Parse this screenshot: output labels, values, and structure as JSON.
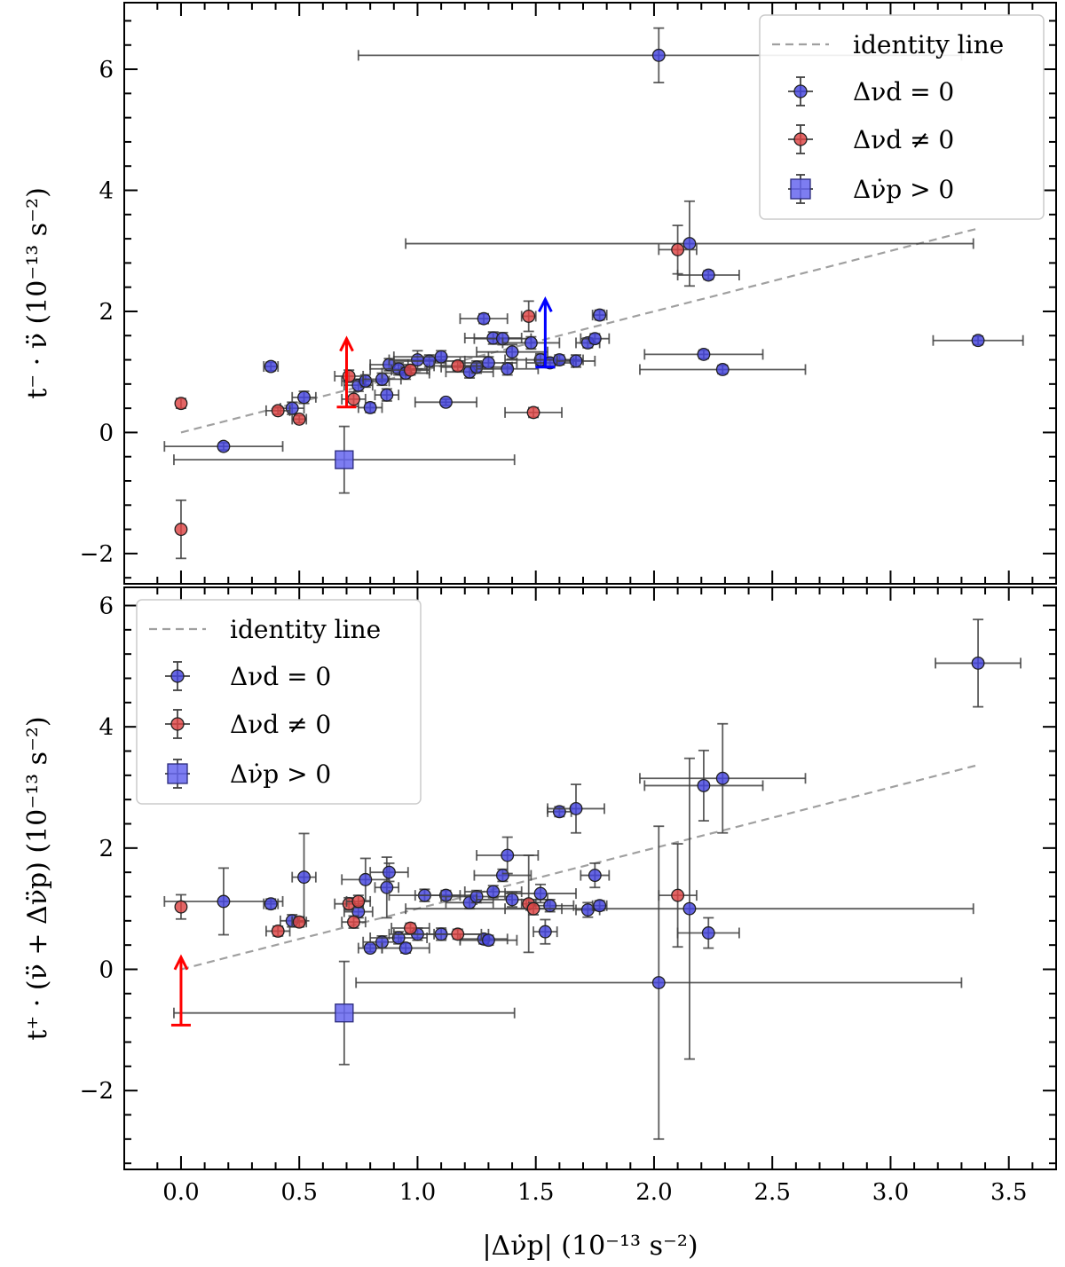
{
  "chart_data": [
    {
      "id": "top",
      "type": "scatter",
      "xlabel": "|Δν̇p| (10^-13 s^-2)",
      "ylabel": "t⁻ · ν̈ (10⁻¹³ s⁻²)",
      "xlim": [
        -0.24,
        3.7
      ],
      "ylim": [
        -2.5,
        7.1
      ],
      "yticks": [
        "−2",
        "0",
        "2",
        "4",
        "6"
      ],
      "ytick_values": [
        -2,
        0,
        2,
        4,
        6
      ],
      "show_x_tick_labels": false,
      "legend": {
        "position": "top-right",
        "entries": [
          "identity line",
          "Δνd = 0",
          "Δνd ≠ 0",
          "Δν̇p > 0"
        ]
      },
      "identity_line": [
        [
          0,
          0
        ],
        [
          3.37,
          3.37
        ]
      ],
      "series": [
        {
          "name": "Δνd = 0",
          "color": "#4444dd",
          "points": [
            {
              "x": 2.02,
              "y": 6.23,
              "xerr": [
                1.27,
                1.28
              ],
              "yerr": 0.45
            },
            {
              "x": 2.15,
              "y": 3.12,
              "xerr": [
                1.2,
                1.2
              ],
              "yerr": 0.7
            },
            {
              "x": 2.23,
              "y": 2.6,
              "xerr": 0.13,
              "yerr": 0.07
            },
            {
              "x": 3.37,
              "y": 1.52,
              "xerr": 0.19,
              "yerr": 0.07
            },
            {
              "x": 2.21,
              "y": 1.29,
              "xerr": 0.25,
              "yerr": 0.07
            },
            {
              "x": 2.29,
              "y": 1.04,
              "xerr": 0.35,
              "yerr": 0.07
            },
            {
              "x": 0.18,
              "y": -0.23,
              "xerr": 0.25,
              "yerr": 0.06
            },
            {
              "x": 0.38,
              "y": 1.09,
              "xerr": 0.03,
              "yerr": 0.07
            },
            {
              "x": 0.47,
              "y": 0.4,
              "xerr": 0.05,
              "yerr": 0.1
            },
            {
              "x": 0.52,
              "y": 0.58,
              "xerr": 0.05,
              "yerr": 0.1
            },
            {
              "x": 0.75,
              "y": 0.78,
              "xerr": 0.06,
              "yerr": 0.1
            },
            {
              "x": 0.78,
              "y": 0.85,
              "xerr": 0.1,
              "yerr": 0.1
            },
            {
              "x": 0.8,
              "y": 0.41,
              "xerr": 0.05,
              "yerr": 0.08
            },
            {
              "x": 0.85,
              "y": 0.88,
              "xerr": 0.08,
              "yerr": 0.1
            },
            {
              "x": 0.87,
              "y": 0.62,
              "xerr": 0.05,
              "yerr": 0.1
            },
            {
              "x": 0.88,
              "y": 1.12,
              "xerr": 0.08,
              "yerr": 0.1
            },
            {
              "x": 0.92,
              "y": 1.05,
              "xerr": 0.12,
              "yerr": 0.1
            },
            {
              "x": 0.95,
              "y": 0.98,
              "xerr": 0.1,
              "yerr": 0.1
            },
            {
              "x": 1.0,
              "y": 1.2,
              "xerr": 0.12,
              "yerr": 0.15
            },
            {
              "x": 1.05,
              "y": 1.18,
              "xerr": 0.15,
              "yerr": 0.1
            },
            {
              "x": 1.1,
              "y": 1.25,
              "xerr": 0.2,
              "yerr": 0.1
            },
            {
              "x": 1.12,
              "y": 0.5,
              "xerr": 0.13,
              "yerr": 0.05
            },
            {
              "x": 1.22,
              "y": 1.0,
              "xerr": 0.1,
              "yerr": 0.1
            },
            {
              "x": 1.25,
              "y": 1.08,
              "xerr": 0.15,
              "yerr": 0.1
            },
            {
              "x": 1.28,
              "y": 1.88,
              "xerr": 0.1,
              "yerr": 0.08
            },
            {
              "x": 1.3,
              "y": 1.15,
              "xerr": 0.12,
              "yerr": 0.1
            },
            {
              "x": 1.32,
              "y": 1.56,
              "xerr": 0.12,
              "yerr": 0.1
            },
            {
              "x": 1.36,
              "y": 1.55,
              "xerr": 0.12,
              "yerr": 0.1
            },
            {
              "x": 1.38,
              "y": 1.05,
              "xerr": 0.13,
              "yerr": 0.1
            },
            {
              "x": 1.4,
              "y": 1.33,
              "xerr": 0.15,
              "yerr": 0.12
            },
            {
              "x": 1.48,
              "y": 1.48,
              "xerr": 0.12,
              "yerr": 0.1
            },
            {
              "x": 1.52,
              "y": 1.2,
              "xerr": 0.15,
              "yerr": 0.1
            },
            {
              "x": 1.56,
              "y": 1.15,
              "xerr": 0.1,
              "yerr": 0.08
            },
            {
              "x": 1.6,
              "y": 1.2,
              "xerr": 0.1,
              "yerr": 0.08
            },
            {
              "x": 1.67,
              "y": 1.18,
              "xerr": 0.08,
              "yerr": 0.1
            },
            {
              "x": 1.72,
              "y": 1.48,
              "xerr": 0.05,
              "yerr": 0.08
            },
            {
              "x": 1.75,
              "y": 1.55,
              "xerr": 0.06,
              "yerr": 0.08
            },
            {
              "x": 1.77,
              "y": 1.94,
              "xerr": 0.03,
              "yerr": 0.08
            }
          ]
        },
        {
          "name": "Δνd ≠ 0",
          "color": "#dd4444",
          "points": [
            {
              "x": 2.1,
              "y": 3.02,
              "xerr": 0.08,
              "yerr": 0.4
            },
            {
              "x": 0.0,
              "y": 0.48,
              "xerr": 0.0,
              "yerr": 0.08
            },
            {
              "x": 0.0,
              "y": -1.6,
              "xerr": 0.0,
              "yerr": 0.48
            },
            {
              "x": 0.41,
              "y": 0.36,
              "xerr": 0.05,
              "yerr": 0.06
            },
            {
              "x": 0.5,
              "y": 0.22,
              "xerr": 0.03,
              "yerr": 0.06
            },
            {
              "x": 0.71,
              "y": 0.93,
              "xerr": 0.06,
              "yerr": 0.1
            },
            {
              "x": 0.73,
              "y": 0.55,
              "xerr": 0.05,
              "yerr": 0.12
            },
            {
              "x": 0.97,
              "y": 1.03,
              "xerr": 0.08,
              "yerr": 0.08
            },
            {
              "x": 1.17,
              "y": 1.1,
              "xerr": 0.1,
              "yerr": 0.08
            },
            {
              "x": 1.47,
              "y": 1.92,
              "xerr": 0.03,
              "yerr": 0.25
            },
            {
              "x": 1.49,
              "y": 0.33,
              "xerr": 0.12,
              "yerr": 0.08
            }
          ]
        },
        {
          "name": "Δν̇p > 0",
          "color": "#6666ee",
          "marker": "square",
          "points": [
            {
              "x": 0.69,
              "y": -0.45,
              "xerr": 0.72,
              "yerr": 0.55
            }
          ]
        }
      ],
      "limit_arrows": [
        {
          "color": "#ff0000",
          "x": 0.7,
          "y_from": 0.42,
          "y_to": 1.55
        },
        {
          "color": "#0000ff",
          "x": 1.54,
          "y_from": 1.08,
          "y_to": 2.2
        }
      ]
    },
    {
      "id": "bottom",
      "type": "scatter",
      "xlabel": "|Δν̇p| (10⁻¹³ s⁻²)",
      "ylabel": "t⁺ · (ν̈ + Δν̈p) (10⁻¹³ s⁻²)",
      "xlim": [
        -0.24,
        3.7
      ],
      "ylim": [
        -3.3,
        6.3
      ],
      "xticks": [
        "0.0",
        "0.5",
        "1.0",
        "1.5",
        "2.0",
        "2.5",
        "3.0",
        "3.5"
      ],
      "xtick_values": [
        0,
        0.5,
        1.0,
        1.5,
        2.0,
        2.5,
        3.0,
        3.5
      ],
      "yticks": [
        "−2",
        "0",
        "2",
        "4",
        "6"
      ],
      "ytick_values": [
        -2,
        0,
        2,
        4,
        6
      ],
      "legend": {
        "position": "top-left",
        "entries": [
          "identity line",
          "Δνd = 0",
          "Δνd ≠ 0",
          "Δν̇p > 0"
        ]
      },
      "identity_line": [
        [
          0,
          0
        ],
        [
          3.37,
          3.37
        ]
      ],
      "series": [
        {
          "name": "Δνd = 0",
          "color": "#4444dd",
          "points": [
            {
              "x": 3.37,
              "y": 5.05,
              "xerr": 0.18,
              "yerr": 0.72
            },
            {
              "x": 2.29,
              "y": 3.15,
              "xerr": 0.35,
              "yerr": 0.9
            },
            {
              "x": 2.21,
              "y": 3.03,
              "xerr": 0.25,
              "yerr": 0.58
            },
            {
              "x": 2.15,
              "y": 1.0,
              "xerr": [
                1.2,
                1.2
              ],
              "yerr": 2.48
            },
            {
              "x": 2.23,
              "y": 0.6,
              "xerr": 0.13,
              "yerr": 0.25
            },
            {
              "x": 2.02,
              "y": -0.22,
              "xerr": [
                1.28,
                1.28
              ],
              "yerr": 2.58
            },
            {
              "x": 0.18,
              "y": 1.12,
              "xerr": 0.25,
              "yerr": 0.55
            },
            {
              "x": 0.38,
              "y": 1.08,
              "xerr": 0.03,
              "yerr": 0.08
            },
            {
              "x": 0.47,
              "y": 0.8,
              "xerr": 0.05,
              "yerr": 0.1
            },
            {
              "x": 0.52,
              "y": 1.52,
              "xerr": 0.05,
              "yerr": 0.72
            },
            {
              "x": 0.75,
              "y": 0.95,
              "xerr": 0.06,
              "yerr": 0.1
            },
            {
              "x": 0.78,
              "y": 1.48,
              "xerr": 0.1,
              "yerr": 0.35
            },
            {
              "x": 0.8,
              "y": 0.35,
              "xerr": 0.05,
              "yerr": 0.06
            },
            {
              "x": 0.85,
              "y": 0.45,
              "xerr": 0.08,
              "yerr": 0.1
            },
            {
              "x": 0.87,
              "y": 1.35,
              "xerr": 0.05,
              "yerr": 0.5
            },
            {
              "x": 0.88,
              "y": 1.6,
              "xerr": 0.08,
              "yerr": 0.15
            },
            {
              "x": 0.92,
              "y": 0.52,
              "xerr": 0.12,
              "yerr": 0.1
            },
            {
              "x": 0.95,
              "y": 0.35,
              "xerr": 0.1,
              "yerr": 0.08
            },
            {
              "x": 1.0,
              "y": 0.58,
              "xerr": 0.12,
              "yerr": 0.1
            },
            {
              "x": 1.03,
              "y": 1.22,
              "xerr": 0.15,
              "yerr": 0.1
            },
            {
              "x": 1.1,
              "y": 0.58,
              "xerr": 0.2,
              "yerr": 0.1
            },
            {
              "x": 1.12,
              "y": 1.22,
              "xerr": 0.13,
              "yerr": 0.08
            },
            {
              "x": 1.22,
              "y": 1.1,
              "xerr": 0.1,
              "yerr": 0.1
            },
            {
              "x": 1.25,
              "y": 1.2,
              "xerr": 0.15,
              "yerr": 0.1
            },
            {
              "x": 1.28,
              "y": 0.5,
              "xerr": 0.1,
              "yerr": 0.08
            },
            {
              "x": 1.3,
              "y": 0.48,
              "xerr": 0.12,
              "yerr": 0.08
            },
            {
              "x": 1.32,
              "y": 1.28,
              "xerr": 0.12,
              "yerr": 0.1
            },
            {
              "x": 1.36,
              "y": 1.55,
              "xerr": 0.12,
              "yerr": 0.1
            },
            {
              "x": 1.38,
              "y": 1.88,
              "xerr": 0.13,
              "yerr": 0.3
            },
            {
              "x": 1.4,
              "y": 1.15,
              "xerr": 0.15,
              "yerr": 0.12
            },
            {
              "x": 1.52,
              "y": 1.25,
              "xerr": 0.15,
              "yerr": 0.15
            },
            {
              "x": 1.54,
              "y": 0.62,
              "xerr": 0.05,
              "yerr": 0.2
            },
            {
              "x": 1.56,
              "y": 1.05,
              "xerr": 0.1,
              "yerr": 0.1
            },
            {
              "x": 1.6,
              "y": 2.6,
              "xerr": 0.05,
              "yerr": 0.08
            },
            {
              "x": 1.67,
              "y": 2.65,
              "xerr": 0.12,
              "yerr": 0.4
            },
            {
              "x": 1.72,
              "y": 0.98,
              "xerr": 0.05,
              "yerr": 0.12
            },
            {
              "x": 1.75,
              "y": 1.55,
              "xerr": 0.06,
              "yerr": 0.2
            },
            {
              "x": 1.77,
              "y": 1.05,
              "xerr": 0.03,
              "yerr": 0.08
            }
          ]
        },
        {
          "name": "Δνd ≠ 0",
          "color": "#dd4444",
          "points": [
            {
              "x": 2.1,
              "y": 1.22,
              "xerr": 0.08,
              "yerr": 0.85
            },
            {
              "x": 0.0,
              "y": 1.03,
              "xerr": 0.0,
              "yerr": 0.2
            },
            {
              "x": 0.41,
              "y": 0.63,
              "xerr": 0.05,
              "yerr": 0.08
            },
            {
              "x": 0.5,
              "y": 0.78,
              "xerr": 0.03,
              "yerr": 0.08
            },
            {
              "x": 0.71,
              "y": 1.08,
              "xerr": 0.06,
              "yerr": 0.1
            },
            {
              "x": 0.73,
              "y": 0.78,
              "xerr": 0.05,
              "yerr": 0.1
            },
            {
              "x": 0.75,
              "y": 1.12,
              "xerr": 0.05,
              "yerr": 0.1
            },
            {
              "x": 0.97,
              "y": 0.68,
              "xerr": 0.08,
              "yerr": 0.08
            },
            {
              "x": 1.17,
              "y": 0.58,
              "xerr": 0.1,
              "yerr": 0.08
            },
            {
              "x": 1.47,
              "y": 1.08,
              "xerr": 0.03,
              "yerr": 0.8
            },
            {
              "x": 1.49,
              "y": 1.0,
              "xerr": 0.12,
              "yerr": 0.1
            }
          ]
        },
        {
          "name": "Δν̇p > 0",
          "color": "#6666ee",
          "marker": "square",
          "points": [
            {
              "x": 0.69,
              "y": -0.72,
              "xerr": 0.72,
              "yerr": 0.85
            }
          ]
        }
      ],
      "limit_arrows": [
        {
          "color": "#ff0000",
          "x": 0.0,
          "y_from": -0.92,
          "y_to": 0.2
        }
      ]
    }
  ]
}
